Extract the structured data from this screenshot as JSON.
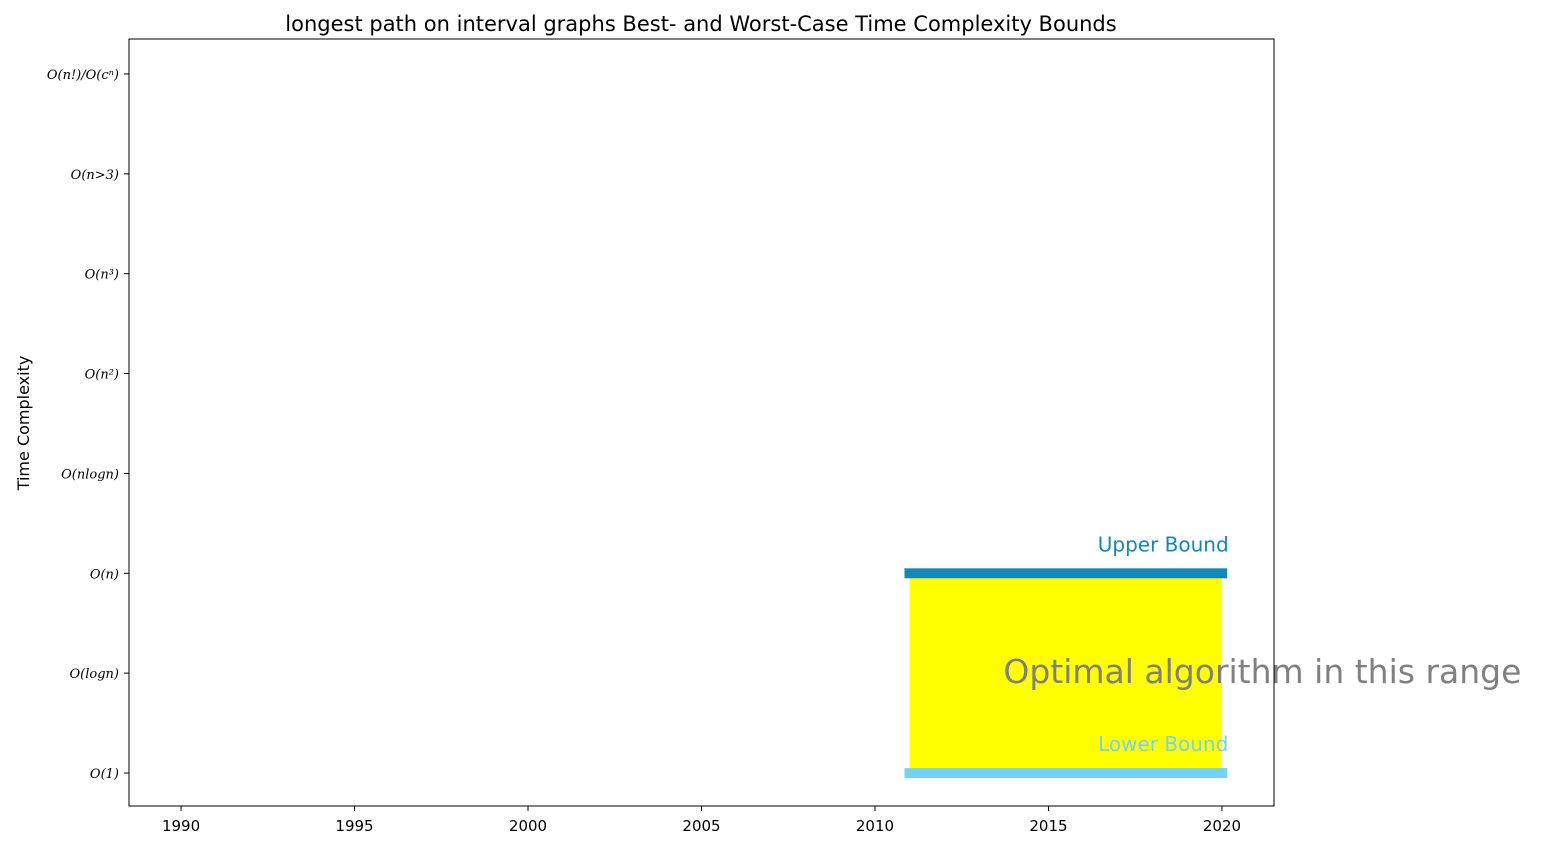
{
  "chart_data": {
    "type": "bar",
    "title": "longest path on interval graphs Best- and Worst-Case Time Complexity Bounds",
    "xlabel": "",
    "ylabel": "Time Complexity",
    "xlim": [
      1988.5,
      2021.5
    ],
    "ylim": [
      -0.33,
      7.35
    ],
    "x_ticks": [
      1990,
      1995,
      2000,
      2005,
      2010,
      2015,
      2020
    ],
    "y_ticks": [
      {
        "value": 0,
        "label": "O(1)"
      },
      {
        "value": 1,
        "label": "O(logn)"
      },
      {
        "value": 2,
        "label": "O(n)"
      },
      {
        "value": 3,
        "label": "O(nlogn)"
      },
      {
        "value": 4,
        "label": "O(n²)"
      },
      {
        "value": 5,
        "label": "O(n³)"
      },
      {
        "value": 6,
        "label": "O(n>3)"
      },
      {
        "value": 7,
        "label": "O(n!)/O(cⁿ)"
      }
    ],
    "grid": false,
    "series": [
      {
        "name": "Upper Bound",
        "x_start": 2011,
        "x_end": 2020,
        "level": 2,
        "color": "#1287b8"
      },
      {
        "name": "Lower Bound",
        "x_start": 2011,
        "x_end": 2020,
        "level": 0,
        "color": "#73d3f5"
      }
    ],
    "optimal_region": {
      "x_start": 2011,
      "x_end": 2020,
      "from": 0,
      "to": 2,
      "color": "#ffff00"
    },
    "annotations": {
      "upper_label": "Upper Bound",
      "lower_label": "Lower Bound",
      "optimal_text": "Optimal algorithm in this range",
      "optimal_color": "#808080"
    }
  }
}
